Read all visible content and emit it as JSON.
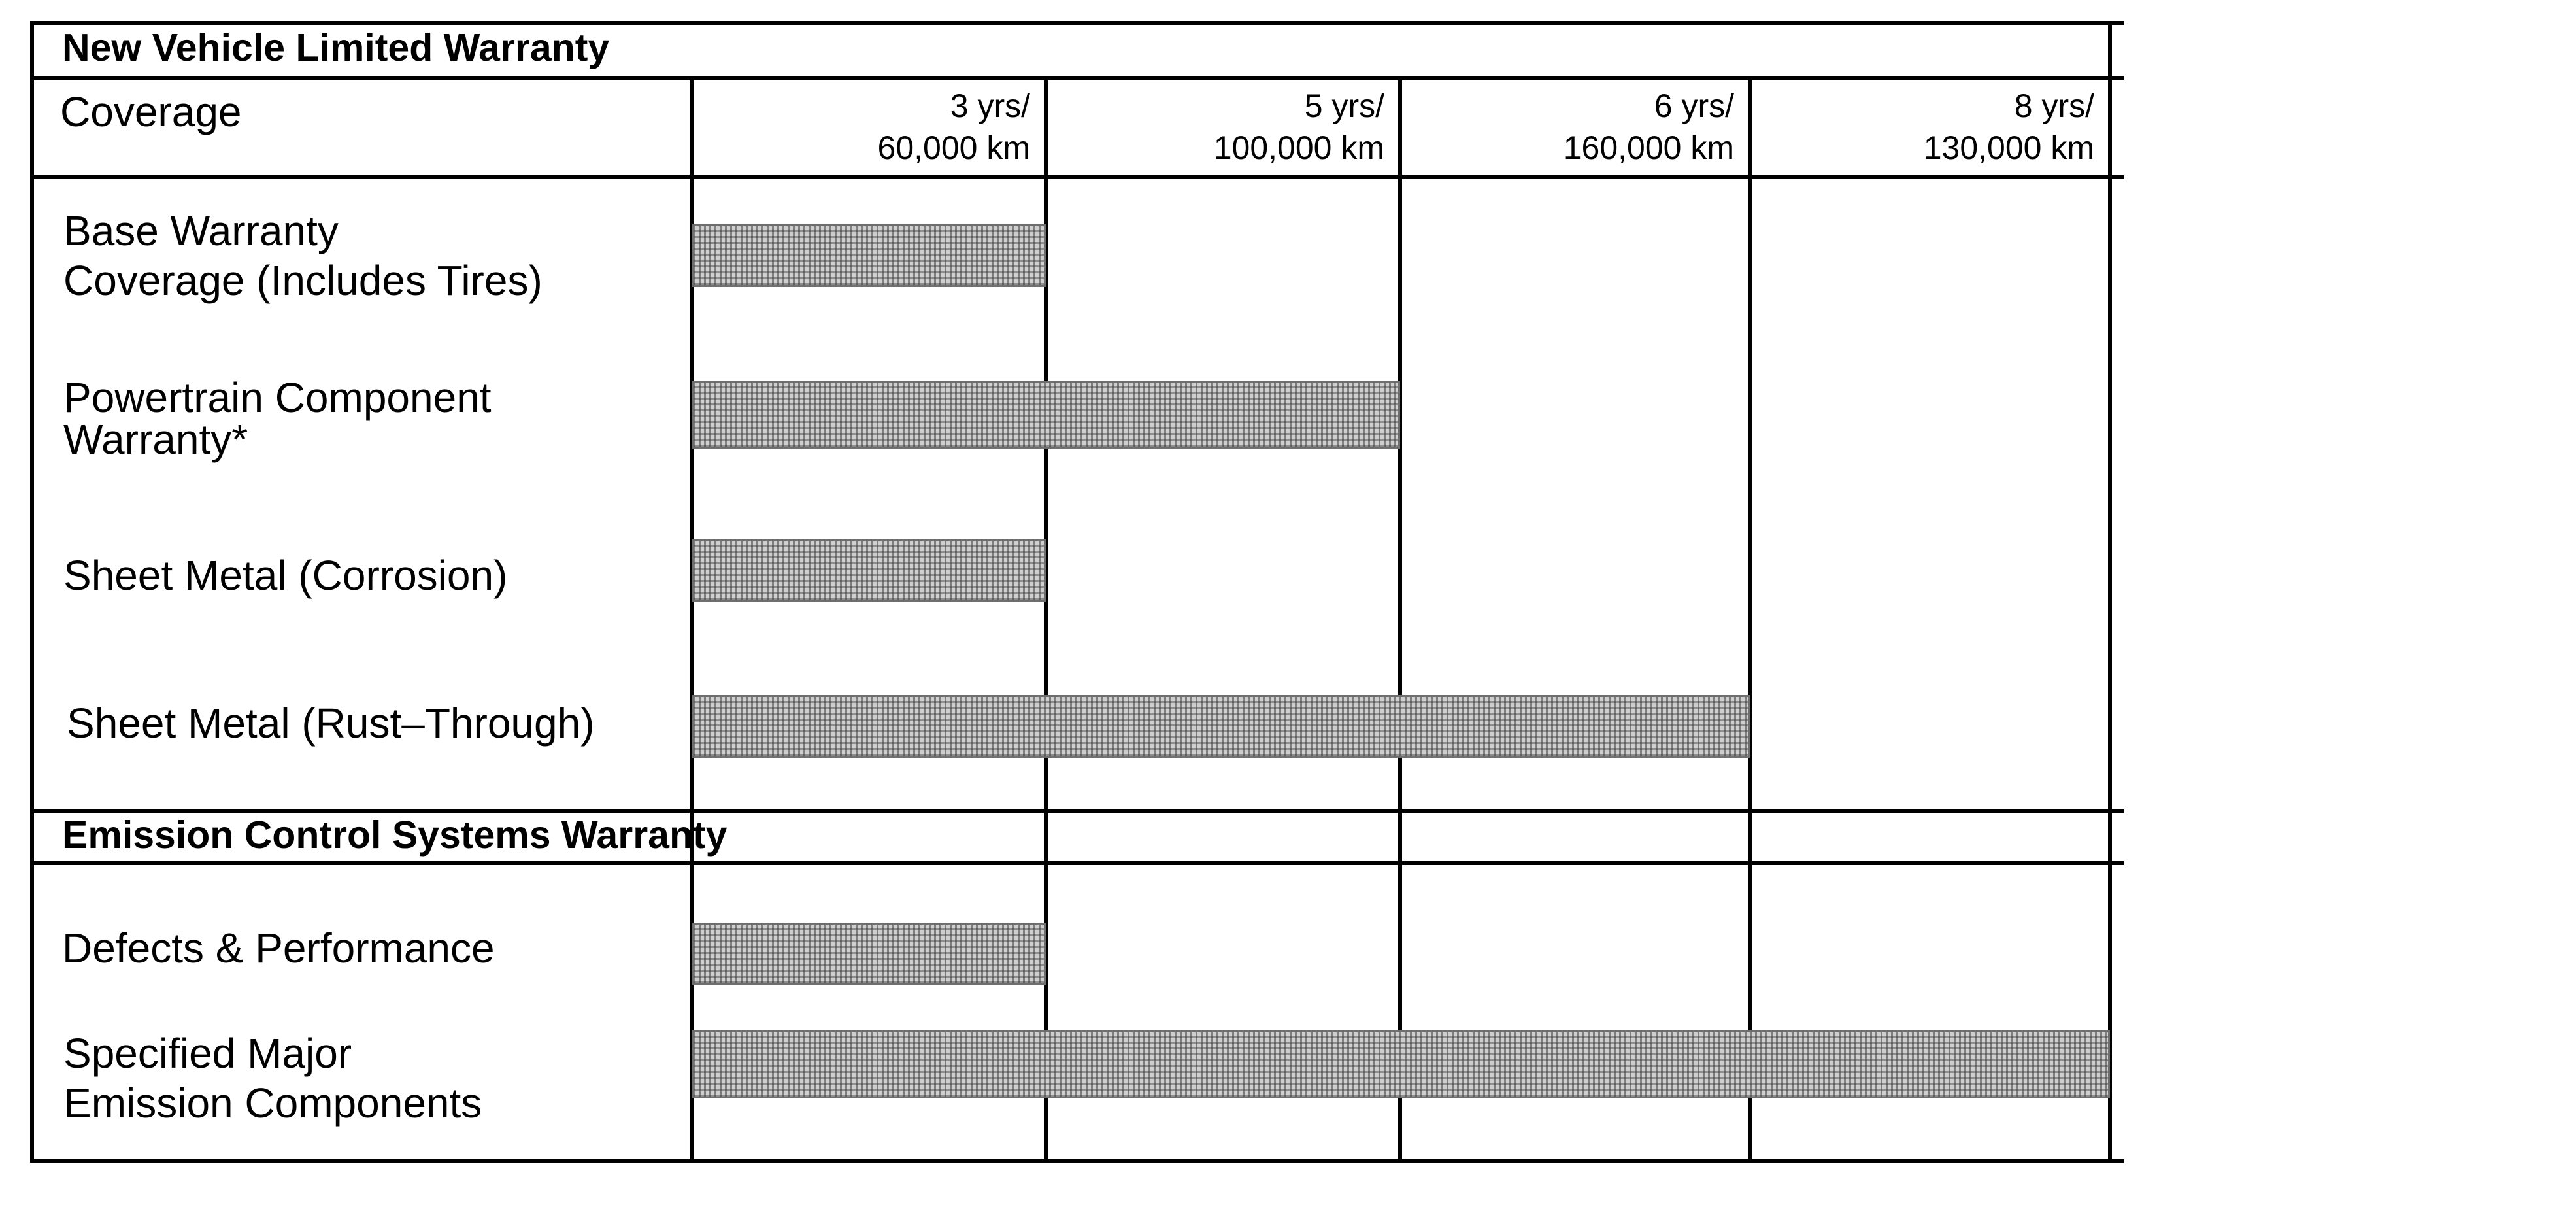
{
  "new_vehicle_section": {
    "title": "New Vehicle Limited Warranty",
    "coverage_label": "Coverage",
    "columns": [
      {
        "years": "3 yrs/",
        "distance": "60,000 km"
      },
      {
        "years": "5 yrs/",
        "distance": "100,000 km"
      },
      {
        "years": "6 yrs/",
        "distance": "160,000 km"
      },
      {
        "years": "8 yrs/",
        "distance": "130,000 km"
      }
    ],
    "rows": [
      {
        "label_lines": [
          "Base Warranty",
          "Coverage (Includes Tires)"
        ],
        "covered_columns": 1
      },
      {
        "label_lines": [
          "Powertrain Component",
          "Warranty*"
        ],
        "covered_columns": 2
      },
      {
        "label_lines": [
          "Sheet Metal (Corrosion)"
        ],
        "covered_columns": 1
      },
      {
        "label_lines": [
          "Sheet Metal (Rust–Through)"
        ],
        "covered_columns": 3
      }
    ]
  },
  "emission_section": {
    "title": "Emission Control Systems Warranty",
    "rows": [
      {
        "label_lines": [
          "Defects & Performance"
        ],
        "covered_columns": 1
      },
      {
        "label_lines": [
          "Specified Major",
          "Emission Components"
        ],
        "covered_columns": 4
      }
    ]
  },
  "colors": {
    "line": "#000000",
    "bar_fill": "#cfcfcf",
    "bar_border": "#6e6e6e"
  }
}
